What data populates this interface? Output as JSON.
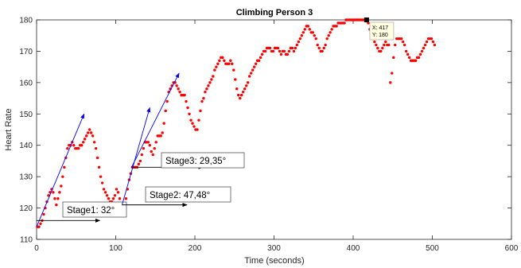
{
  "chart_data": {
    "type": "scatter",
    "title": "Climbing Person 3",
    "xlabel": "Time (seconds)",
    "ylabel": "Heart Rate",
    "xlim": [
      0,
      600
    ],
    "ylim": [
      110,
      180
    ],
    "x_ticks": [
      "0",
      "100",
      "200",
      "300",
      "400",
      "500",
      "600"
    ],
    "y_ticks": [
      "110",
      "120",
      "130",
      "140",
      "150",
      "160",
      "170",
      "180"
    ],
    "grid": false,
    "marker_color": "#ff0000",
    "arrow_color": "#0000ff",
    "series": [
      {
        "points": [
          [
            1,
            114
          ],
          [
            3,
            114
          ],
          [
            5,
            115
          ],
          [
            7,
            116
          ],
          [
            9,
            118
          ],
          [
            11,
            120
          ],
          [
            13,
            122
          ],
          [
            15,
            124
          ],
          [
            17,
            125
          ],
          [
            19,
            126
          ],
          [
            21,
            125
          ],
          [
            23,
            123
          ],
          [
            25,
            121
          ],
          [
            27,
            123
          ],
          [
            29,
            125
          ],
          [
            31,
            127
          ],
          [
            33,
            130
          ],
          [
            35,
            133
          ],
          [
            37,
            136
          ],
          [
            39,
            139
          ],
          [
            41,
            140
          ],
          [
            43,
            140
          ],
          [
            45,
            141
          ],
          [
            47,
            140
          ],
          [
            49,
            139
          ],
          [
            51,
            139
          ],
          [
            53,
            139
          ],
          [
            55,
            140
          ],
          [
            57,
            140
          ],
          [
            59,
            141
          ],
          [
            61,
            142
          ],
          [
            63,
            143
          ],
          [
            65,
            144
          ],
          [
            67,
            145
          ],
          [
            69,
            144
          ],
          [
            71,
            143
          ],
          [
            73,
            141
          ],
          [
            75,
            139
          ],
          [
            77,
            136
          ],
          [
            79,
            133
          ],
          [
            81,
            130
          ],
          [
            83,
            128
          ],
          [
            85,
            126
          ],
          [
            87,
            125
          ],
          [
            89,
            124
          ],
          [
            91,
            123
          ],
          [
            93,
            122
          ],
          [
            95,
            122
          ],
          [
            97,
            123
          ],
          [
            99,
            124
          ],
          [
            101,
            126
          ],
          [
            103,
            125
          ],
          [
            105,
            123
          ],
          [
            107,
            121
          ],
          [
            109,
            120
          ],
          [
            111,
            121
          ],
          [
            113,
            123
          ],
          [
            115,
            126
          ],
          [
            117,
            129
          ],
          [
            119,
            131
          ],
          [
            121,
            133
          ],
          [
            123,
            133
          ],
          [
            125,
            133
          ],
          [
            127,
            133
          ],
          [
            129,
            134
          ],
          [
            131,
            135
          ],
          [
            133,
            137
          ],
          [
            135,
            139
          ],
          [
            137,
            141
          ],
          [
            139,
            141
          ],
          [
            141,
            141
          ],
          [
            143,
            140
          ],
          [
            145,
            138
          ],
          [
            147,
            137
          ],
          [
            149,
            139
          ],
          [
            151,
            141
          ],
          [
            153,
            143
          ],
          [
            155,
            143
          ],
          [
            157,
            143
          ],
          [
            159,
            144
          ],
          [
            161,
            147
          ],
          [
            163,
            151
          ],
          [
            165,
            154
          ],
          [
            167,
            157
          ],
          [
            169,
            158
          ],
          [
            171,
            159
          ],
          [
            173,
            160
          ],
          [
            175,
            160
          ],
          [
            177,
            159
          ],
          [
            179,
            158
          ],
          [
            181,
            157
          ],
          [
            183,
            156
          ],
          [
            185,
            156
          ],
          [
            187,
            156
          ],
          [
            189,
            154
          ],
          [
            191,
            152
          ],
          [
            193,
            150
          ],
          [
            195,
            148
          ],
          [
            197,
            147
          ],
          [
            199,
            146
          ],
          [
            201,
            145
          ],
          [
            203,
            145
          ],
          [
            205,
            148
          ],
          [
            207,
            151
          ],
          [
            209,
            154
          ],
          [
            211,
            155
          ],
          [
            213,
            157
          ],
          [
            215,
            158
          ],
          [
            217,
            159
          ],
          [
            219,
            160
          ],
          [
            221,
            161
          ],
          [
            223,
            162
          ],
          [
            225,
            164
          ],
          [
            227,
            165
          ],
          [
            229,
            166
          ],
          [
            231,
            167
          ],
          [
            233,
            168
          ],
          [
            235,
            168
          ],
          [
            237,
            167
          ],
          [
            239,
            166
          ],
          [
            241,
            166
          ],
          [
            243,
            166
          ],
          [
            245,
            167
          ],
          [
            247,
            166
          ],
          [
            249,
            164
          ],
          [
            251,
            161
          ],
          [
            253,
            158
          ],
          [
            255,
            156
          ],
          [
            257,
            155
          ],
          [
            259,
            156
          ],
          [
            261,
            157
          ],
          [
            263,
            158
          ],
          [
            265,
            159
          ],
          [
            267,
            160
          ],
          [
            269,
            162
          ],
          [
            271,
            163
          ],
          [
            273,
            164
          ],
          [
            275,
            165
          ],
          [
            277,
            166
          ],
          [
            279,
            167
          ],
          [
            281,
            167
          ],
          [
            283,
            168
          ],
          [
            285,
            169
          ],
          [
            287,
            170
          ],
          [
            289,
            170
          ],
          [
            291,
            171
          ],
          [
            293,
            171
          ],
          [
            295,
            171
          ],
          [
            297,
            170
          ],
          [
            299,
            170
          ],
          [
            301,
            171
          ],
          [
            303,
            171
          ],
          [
            305,
            171
          ],
          [
            307,
            170
          ],
          [
            309,
            169
          ],
          [
            311,
            170
          ],
          [
            313,
            170
          ],
          [
            315,
            169
          ],
          [
            317,
            169
          ],
          [
            319,
            170
          ],
          [
            321,
            171
          ],
          [
            323,
            171
          ],
          [
            325,
            170
          ],
          [
            327,
            171
          ],
          [
            329,
            172
          ],
          [
            331,
            173
          ],
          [
            333,
            174
          ],
          [
            335,
            175
          ],
          [
            337,
            176
          ],
          [
            339,
            177
          ],
          [
            341,
            178
          ],
          [
            343,
            178
          ],
          [
            345,
            177
          ],
          [
            347,
            176
          ],
          [
            349,
            176
          ],
          [
            351,
            175
          ],
          [
            353,
            174
          ],
          [
            355,
            172
          ],
          [
            357,
            171
          ],
          [
            359,
            170
          ],
          [
            361,
            170
          ],
          [
            363,
            171
          ],
          [
            365,
            172
          ],
          [
            367,
            174
          ],
          [
            369,
            175
          ],
          [
            371,
            176
          ],
          [
            373,
            177
          ],
          [
            375,
            178
          ],
          [
            377,
            178
          ],
          [
            379,
            178
          ],
          [
            381,
            179
          ],
          [
            383,
            179
          ],
          [
            385,
            179
          ],
          [
            387,
            179
          ],
          [
            389,
            179
          ],
          [
            391,
            180
          ],
          [
            393,
            180
          ],
          [
            395,
            180
          ],
          [
            397,
            180
          ],
          [
            399,
            180
          ],
          [
            401,
            180
          ],
          [
            403,
            180
          ],
          [
            405,
            180
          ],
          [
            407,
            180
          ],
          [
            409,
            180
          ],
          [
            411,
            180
          ],
          [
            413,
            180
          ],
          [
            417,
            180
          ],
          [
            419,
            179
          ],
          [
            421,
            177
          ],
          [
            423,
            175
          ],
          [
            425,
            174
          ],
          [
            427,
            173
          ],
          [
            429,
            172
          ],
          [
            431,
            171
          ],
          [
            433,
            170
          ],
          [
            435,
            170
          ],
          [
            437,
            171
          ],
          [
            439,
            172
          ],
          [
            441,
            173
          ],
          [
            443,
            172
          ],
          [
            445,
            172
          ],
          [
            447,
            160
          ],
          [
            449,
            163
          ],
          [
            451,
            168
          ],
          [
            453,
            172
          ],
          [
            455,
            174
          ],
          [
            457,
            174
          ],
          [
            459,
            174
          ],
          [
            461,
            174
          ],
          [
            463,
            173
          ],
          [
            465,
            172
          ],
          [
            467,
            170
          ],
          [
            469,
            169
          ],
          [
            471,
            168
          ],
          [
            473,
            167
          ],
          [
            475,
            167
          ],
          [
            477,
            167
          ],
          [
            479,
            167
          ],
          [
            481,
            168
          ],
          [
            483,
            168
          ],
          [
            485,
            169
          ],
          [
            487,
            170
          ],
          [
            489,
            171
          ],
          [
            491,
            172
          ],
          [
            493,
            173
          ],
          [
            495,
            174
          ],
          [
            497,
            174
          ],
          [
            499,
            174
          ],
          [
            501,
            173
          ],
          [
            503,
            172
          ]
        ]
      }
    ],
    "annotations": [
      {
        "text": "Stage1: 32°",
        "arrow": {
          "from": [
            0,
            116
          ],
          "to": [
            80,
            116
          ]
        },
        "slope_arrow": {
          "from": [
            0,
            114
          ],
          "to": [
            60,
            150
          ]
        }
      },
      {
        "text": "Stage2: 47,48°",
        "arrow": {
          "from": [
            108,
            121
          ],
          "to": [
            190,
            121
          ]
        },
        "slope_arrow": {
          "from": [
            108,
            121
          ],
          "to": [
            143,
            152
          ]
        }
      },
      {
        "text": "Stage3: 29,35°",
        "arrow": {
          "from": [
            120,
            133
          ],
          "to": [
            210,
            133
          ]
        },
        "slope_arrow": {
          "from": [
            120,
            133
          ],
          "to": [
            180,
            163
          ]
        }
      }
    ],
    "datatip": {
      "x_label": "X: 417",
      "y_label": "Y: 180",
      "point": [
        417,
        180
      ]
    }
  }
}
